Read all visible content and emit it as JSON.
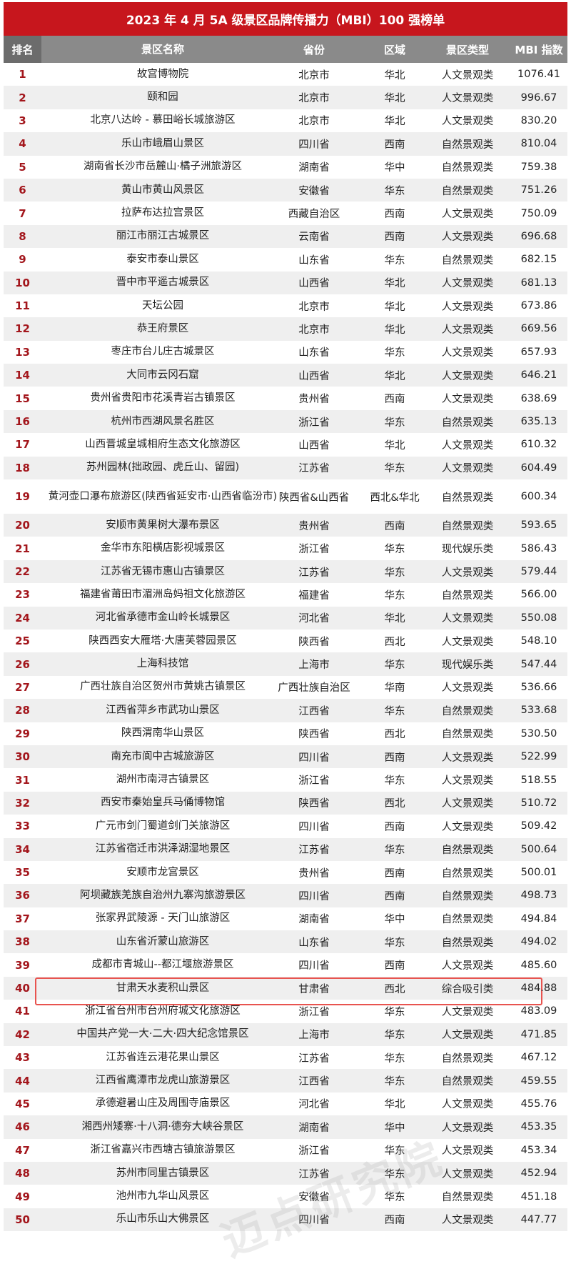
{
  "title": "2023 年 4 月 5A 级景区品牌传播力（MBI）100 强榜单",
  "columns": [
    "排名",
    "景区名称",
    "省份",
    "区域",
    "景区类型",
    "MBI 指数"
  ],
  "colors": {
    "title_bg": "#c7161d",
    "header_bg": "#8a8a8a",
    "rank_text": "#a3161c",
    "highlight_border": "#e8534f"
  },
  "watermark": "迈点研究院",
  "rows": [
    {
      "rank": "1",
      "name": "故宫博物院",
      "province": "北京市",
      "region": "华北",
      "type": "人文景观类",
      "mbi": "1076.41"
    },
    {
      "rank": "2",
      "name": "颐和园",
      "province": "北京市",
      "region": "华北",
      "type": "人文景观类",
      "mbi": "996.67"
    },
    {
      "rank": "3",
      "name": "北京八达岭 - 慕田峪长城旅游区",
      "province": "北京市",
      "region": "华北",
      "type": "人文景观类",
      "mbi": "830.20"
    },
    {
      "rank": "4",
      "name": "乐山市峨眉山景区",
      "province": "四川省",
      "region": "西南",
      "type": "自然景观类",
      "mbi": "810.04"
    },
    {
      "rank": "5",
      "name": "湖南省长沙市岳麓山·橘子洲旅游区",
      "province": "湖南省",
      "region": "华中",
      "type": "自然景观类",
      "mbi": "759.38"
    },
    {
      "rank": "6",
      "name": "黄山市黄山风景区",
      "province": "安徽省",
      "region": "华东",
      "type": "自然景观类",
      "mbi": "751.26"
    },
    {
      "rank": "7",
      "name": "拉萨布达拉宫景区",
      "province": "西藏自治区",
      "region": "西南",
      "type": "人文景观类",
      "mbi": "750.09"
    },
    {
      "rank": "8",
      "name": "丽江市丽江古城景区",
      "province": "云南省",
      "region": "西南",
      "type": "人文景观类",
      "mbi": "696.68"
    },
    {
      "rank": "9",
      "name": "泰安市泰山景区",
      "province": "山东省",
      "region": "华东",
      "type": "自然景观类",
      "mbi": "682.15"
    },
    {
      "rank": "10",
      "name": "晋中市平遥古城景区",
      "province": "山西省",
      "region": "华北",
      "type": "人文景观类",
      "mbi": "681.13"
    },
    {
      "rank": "11",
      "name": "天坛公园",
      "province": "北京市",
      "region": "华北",
      "type": "人文景观类",
      "mbi": "673.86"
    },
    {
      "rank": "12",
      "name": "恭王府景区",
      "province": "北京市",
      "region": "华北",
      "type": "人文景观类",
      "mbi": "669.56"
    },
    {
      "rank": "13",
      "name": "枣庄市台儿庄古城景区",
      "province": "山东省",
      "region": "华东",
      "type": "人文景观类",
      "mbi": "657.93"
    },
    {
      "rank": "14",
      "name": "大同市云冈石窟",
      "province": "山西省",
      "region": "华北",
      "type": "人文景观类",
      "mbi": "646.21"
    },
    {
      "rank": "15",
      "name": "贵州省贵阳市花溪青岩古镇景区",
      "province": "贵州省",
      "region": "西南",
      "type": "人文景观类",
      "mbi": "638.69"
    },
    {
      "rank": "16",
      "name": "杭州市西湖风景名胜区",
      "province": "浙江省",
      "region": "华东",
      "type": "自然景观类",
      "mbi": "635.13"
    },
    {
      "rank": "17",
      "name": "山西晋城皇城相府生态文化旅游区",
      "province": "山西省",
      "region": "华北",
      "type": "人文景观类",
      "mbi": "610.32"
    },
    {
      "rank": "18",
      "name": "苏州园林(拙政园、虎丘山、留园)",
      "province": "江苏省",
      "region": "华东",
      "type": "人文景观类",
      "mbi": "604.49"
    },
    {
      "rank": "19",
      "name": "黄河壶口瀑布旅游区(陕西省延安市·山西省临汾市)",
      "province": "陕西省&山西省",
      "region": "西北&华北",
      "type": "自然景观类",
      "mbi": "600.34",
      "tall": true
    },
    {
      "rank": "20",
      "name": "安顺市黄果树大瀑布景区",
      "province": "贵州省",
      "region": "西南",
      "type": "自然景观类",
      "mbi": "593.65"
    },
    {
      "rank": "21",
      "name": "金华市东阳横店影视城景区",
      "province": "浙江省",
      "region": "华东",
      "type": "现代娱乐类",
      "mbi": "586.43"
    },
    {
      "rank": "22",
      "name": "江苏省无锡市惠山古镇景区",
      "province": "江苏省",
      "region": "华东",
      "type": "人文景观类",
      "mbi": "579.44"
    },
    {
      "rank": "23",
      "name": "福建省莆田市湄洲岛妈祖文化旅游区",
      "province": "福建省",
      "region": "华东",
      "type": "自然景观类",
      "mbi": "566.00"
    },
    {
      "rank": "24",
      "name": "河北省承德市金山岭长城景区",
      "province": "河北省",
      "region": "华北",
      "type": "人文景观类",
      "mbi": "550.08"
    },
    {
      "rank": "25",
      "name": "陕西西安大雁塔·大唐芙蓉园景区",
      "province": "陕西省",
      "region": "西北",
      "type": "人文景观类",
      "mbi": "548.10"
    },
    {
      "rank": "26",
      "name": "上海科技馆",
      "province": "上海市",
      "region": "华东",
      "type": "现代娱乐类",
      "mbi": "547.44"
    },
    {
      "rank": "27",
      "name": "广西壮族自治区贺州市黄姚古镇景区",
      "province": "广西壮族自治区",
      "region": "华南",
      "type": "人文景观类",
      "mbi": "536.66"
    },
    {
      "rank": "28",
      "name": "江西省萍乡市武功山景区",
      "province": "江西省",
      "region": "华东",
      "type": "自然景观类",
      "mbi": "533.68"
    },
    {
      "rank": "29",
      "name": "陕西渭南华山景区",
      "province": "陕西省",
      "region": "西北",
      "type": "自然景观类",
      "mbi": "530.50"
    },
    {
      "rank": "30",
      "name": "南充市阆中古城旅游区",
      "province": "四川省",
      "region": "西南",
      "type": "人文景观类",
      "mbi": "522.99"
    },
    {
      "rank": "31",
      "name": "湖州市南浔古镇景区",
      "province": "浙江省",
      "region": "华东",
      "type": "人文景观类",
      "mbi": "518.55"
    },
    {
      "rank": "32",
      "name": "西安市秦始皇兵马俑博物馆",
      "province": "陕西省",
      "region": "西北",
      "type": "人文景观类",
      "mbi": "510.72"
    },
    {
      "rank": "33",
      "name": "广元市剑门蜀道剑门关旅游区",
      "province": "四川省",
      "region": "西南",
      "type": "人文景观类",
      "mbi": "509.42"
    },
    {
      "rank": "34",
      "name": "江苏省宿迁市洪泽湖湿地景区",
      "province": "江苏省",
      "region": "华东",
      "type": "自然景观类",
      "mbi": "500.64"
    },
    {
      "rank": "35",
      "name": "安顺市龙宫景区",
      "province": "贵州省",
      "region": "西南",
      "type": "自然景观类",
      "mbi": "500.01"
    },
    {
      "rank": "36",
      "name": "阿坝藏族羌族自治州九寨沟旅游景区",
      "province": "四川省",
      "region": "西南",
      "type": "自然景观类",
      "mbi": "498.73"
    },
    {
      "rank": "37",
      "name": "张家界武陵源 - 天门山旅游区",
      "province": "湖南省",
      "region": "华中",
      "type": "自然景观类",
      "mbi": "494.84"
    },
    {
      "rank": "38",
      "name": "山东省沂蒙山旅游区",
      "province": "山东省",
      "region": "华东",
      "type": "自然景观类",
      "mbi": "494.02"
    },
    {
      "rank": "39",
      "name": "成都市青城山--都江堰旅游景区",
      "province": "四川省",
      "region": "西南",
      "type": "人文景观类",
      "mbi": "485.60"
    },
    {
      "rank": "40",
      "name": "甘肃天水麦积山景区",
      "province": "甘肃省",
      "region": "西北",
      "type": "综合吸引类",
      "mbi": "484.88",
      "highlighted": true
    },
    {
      "rank": "41",
      "name": "浙江省台州市台州府城文化旅游区",
      "province": "浙江省",
      "region": "华东",
      "type": "人文景观类",
      "mbi": "483.09"
    },
    {
      "rank": "42",
      "name": "中国共产党一大·二大·四大纪念馆景区",
      "province": "上海市",
      "region": "华东",
      "type": "人文景观类",
      "mbi": "471.85"
    },
    {
      "rank": "43",
      "name": "江苏省连云港花果山景区",
      "province": "江苏省",
      "region": "华东",
      "type": "自然景观类",
      "mbi": "467.12"
    },
    {
      "rank": "44",
      "name": "江西省鹰潭市龙虎山旅游景区",
      "province": "江西省",
      "region": "华东",
      "type": "自然景观类",
      "mbi": "459.55"
    },
    {
      "rank": "45",
      "name": "承德避暑山庄及周围寺庙景区",
      "province": "河北省",
      "region": "华北",
      "type": "人文景观类",
      "mbi": "455.76"
    },
    {
      "rank": "46",
      "name": "湘西州矮寨·十八洞·德夯大峡谷景区",
      "province": "湖南省",
      "region": "华中",
      "type": "人文景观类",
      "mbi": "453.35"
    },
    {
      "rank": "47",
      "name": "浙江省嘉兴市西塘古镇旅游景区",
      "province": "浙江省",
      "region": "华东",
      "type": "人文景观类",
      "mbi": "453.34"
    },
    {
      "rank": "48",
      "name": "苏州市同里古镇景区",
      "province": "江苏省",
      "region": "华东",
      "type": "人文景观类",
      "mbi": "452.94"
    },
    {
      "rank": "49",
      "name": "池州市九华山风景区",
      "province": "安徽省",
      "region": "华东",
      "type": "自然景观类",
      "mbi": "451.18"
    },
    {
      "rank": "50",
      "name": "乐山市乐山大佛景区",
      "province": "四川省",
      "region": "西南",
      "type": "人文景观类",
      "mbi": "447.77"
    }
  ]
}
